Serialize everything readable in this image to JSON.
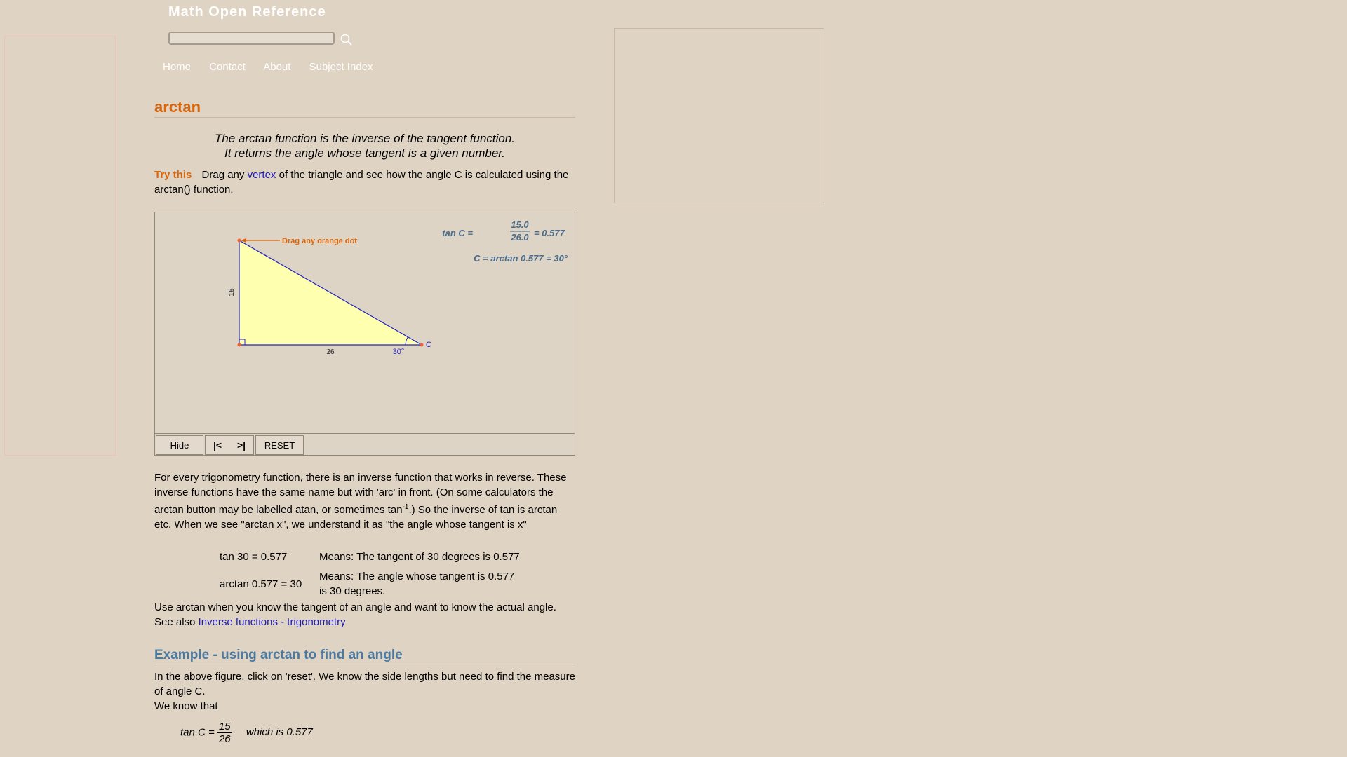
{
  "header": {
    "site_title": "Math Open Reference",
    "search_value": "",
    "nav": [
      "Home",
      "Contact",
      "About",
      "Subject Index"
    ]
  },
  "page": {
    "title": "arctan",
    "definition_line1": "The arctan function is the inverse of the tangent function.",
    "definition_line2": "It returns the angle whose tangent is a given number.",
    "try_label": "Try this",
    "try_text_before": "Drag any",
    "try_link": "vertex",
    "try_text_after": "of the triangle and see how the angle C is calculated using the arctan() function."
  },
  "applet": {
    "formula_lhs": "tan C =",
    "formula_num": "15.0",
    "formula_den": "26.0",
    "formula_rhs": "= 0.577",
    "formula2": "C = arctan 0.577 = 30°",
    "drag_hint": "Drag any orange dot",
    "side_vertical": "15",
    "side_horizontal": "26",
    "angle_label": "30°",
    "vertex_label": "C",
    "buttons": {
      "hide": "Hide",
      "back": "|<",
      "forward": ">|",
      "reset": "RESET"
    },
    "colors": {
      "triangle_fill": "#ffffb0",
      "edge": "#2020c0",
      "hint": "#d8660c",
      "formula": "#4b6d8c"
    }
  },
  "body": {
    "para1_a": "For every trigonometry function, there is an inverse function that works in reverse. These inverse functions have the same name but with 'arc' in front. (On some calculators the arctan button may be labelled atan, or sometimes tan",
    "para1_sup": "-1",
    "para1_b": ".) So the inverse of tan is arctan etc. When we see \"arctan x\", we understand it as \"the angle whose tangent is x\"",
    "table": [
      {
        "expr": "tan 30 = 0.577",
        "meaning": "Means: The tangent of 30 degrees is 0.577"
      },
      {
        "expr": "arctan 0.577 = 30",
        "meaning": "Means: The angle whose tangent is 0.577 is 30 degrees."
      }
    ],
    "para2_line1": "Use arctan when you know the tangent of an angle and want to know the actual angle.",
    "para2_see": "See also",
    "para2_link": "Inverse functions - trigonometry",
    "example_heading": "Example - using arctan to find an angle",
    "para3_line1": "In the above figure, click on 'reset'. We know the side lengths but need to find the measure of angle C.",
    "para3_line2": "We know that",
    "ex_lhs": "tan C =",
    "ex_num": "15",
    "ex_den": "26",
    "ex_rhs": "which is 0.577"
  }
}
